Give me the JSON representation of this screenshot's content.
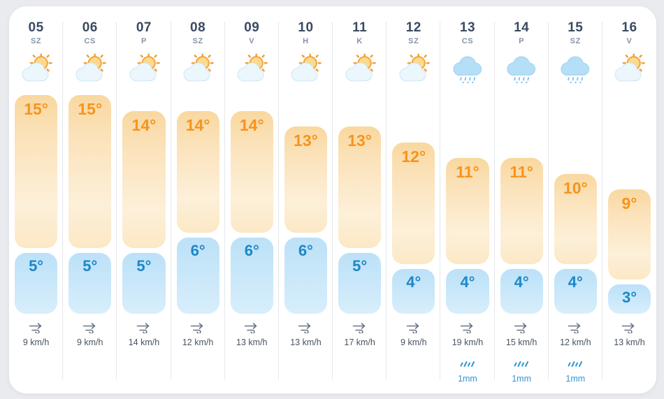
{
  "colors": {
    "page_bg": "#E9EBEE",
    "card_bg": "#FFFFFF",
    "divider": "#E4E7EB",
    "day_number": "#3B4A61",
    "weekday": "#8593A7",
    "high_temp_text": "#F7941D",
    "low_temp_text": "#1C87C9",
    "high_bar_top": "#F9D8A0",
    "high_bar_bottom": "#FBE8C5",
    "low_bar_top": "#BCE1F7",
    "low_bar_bottom": "#D8EEFB",
    "wind_text": "#48535F",
    "wind_icon": "#6A7585",
    "precip": "#2E96D8"
  },
  "columns": [
    {
      "day": "05",
      "weekday": "SZ",
      "icon": "sun-behind-cloud",
      "high": 15,
      "low": 5,
      "high_label": "15°",
      "low_label": "5°",
      "wind_label": "9 km/h",
      "precip_label": null
    },
    {
      "day": "06",
      "weekday": "CS",
      "icon": "sun-behind-cloud",
      "high": 15,
      "low": 5,
      "high_label": "15°",
      "low_label": "5°",
      "wind_label": "9 km/h",
      "precip_label": null
    },
    {
      "day": "07",
      "weekday": "P",
      "icon": "sun-behind-cloud",
      "high": 14,
      "low": 5,
      "high_label": "14°",
      "low_label": "5°",
      "wind_label": "14 km/h",
      "precip_label": null
    },
    {
      "day": "08",
      "weekday": "SZ",
      "icon": "sun-behind-cloud",
      "high": 14,
      "low": 6,
      "high_label": "14°",
      "low_label": "6°",
      "wind_label": "12 km/h",
      "precip_label": null
    },
    {
      "day": "09",
      "weekday": "V",
      "icon": "sun-behind-cloud",
      "high": 14,
      "low": 6,
      "high_label": "14°",
      "low_label": "6°",
      "wind_label": "13 km/h",
      "precip_label": null
    },
    {
      "day": "10",
      "weekday": "H",
      "icon": "sun-behind-cloud",
      "high": 13,
      "low": 6,
      "high_label": "13°",
      "low_label": "6°",
      "wind_label": "13 km/h",
      "precip_label": null
    },
    {
      "day": "11",
      "weekday": "K",
      "icon": "sun-behind-cloud",
      "high": 13,
      "low": 5,
      "high_label": "13°",
      "low_label": "5°",
      "wind_label": "17 km/h",
      "precip_label": null
    },
    {
      "day": "12",
      "weekday": "SZ",
      "icon": "sun-behind-cloud",
      "high": 12,
      "low": 4,
      "high_label": "12°",
      "low_label": "4°",
      "wind_label": "9 km/h",
      "precip_label": null
    },
    {
      "day": "13",
      "weekday": "CS",
      "icon": "rain-cloud",
      "high": 11,
      "low": 4,
      "high_label": "11°",
      "low_label": "4°",
      "wind_label": "19 km/h",
      "precip_label": "1mm"
    },
    {
      "day": "14",
      "weekday": "P",
      "icon": "rain-cloud",
      "high": 11,
      "low": 4,
      "high_label": "11°",
      "low_label": "4°",
      "wind_label": "15 km/h",
      "precip_label": "1mm"
    },
    {
      "day": "15",
      "weekday": "SZ",
      "icon": "rain-cloud",
      "high": 10,
      "low": 4,
      "high_label": "10°",
      "low_label": "4°",
      "wind_label": "12 km/h",
      "precip_label": "1mm"
    },
    {
      "day": "16",
      "weekday": "V",
      "icon": "sun-behind-cloud",
      "high": 9,
      "low": 3,
      "high_label": "9°",
      "low_label": "3°",
      "wind_label": "13 km/h",
      "precip_label": null
    }
  ]
}
